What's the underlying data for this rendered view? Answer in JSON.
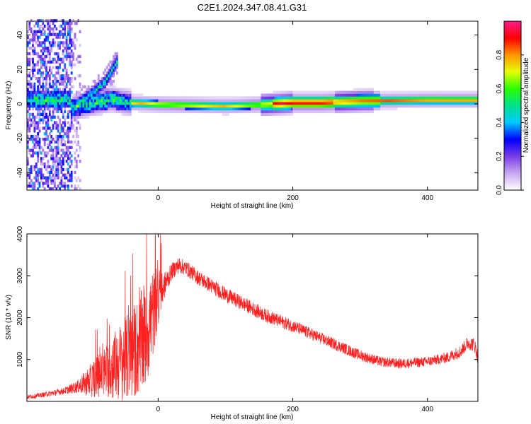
{
  "title": "C2E1.2024.347.08.41.G31",
  "chart_data": [
    {
      "type": "heatmap",
      "xlabel": "Height of straight line (km)",
      "ylabel": "Frequency (Hz)",
      "xlim": [
        -195,
        475
      ],
      "ylim": [
        -50,
        48
      ],
      "x_ticks": [
        0,
        200,
        400
      ],
      "y_ticks": [
        -40,
        -20,
        0,
        20,
        40
      ],
      "colorbar": {
        "label": "Normalized spectral amplitude",
        "range": [
          0,
          1
        ],
        "ticks": [
          0.0,
          0.2,
          0.4,
          0.6,
          0.8
        ],
        "tick_labels": [
          "0.0",
          "0.2",
          "0.4",
          "0.6",
          "0.8"
        ],
        "colormap": [
          "#ffffff",
          "#c8a8f0",
          "#7a3ce6",
          "#0000ff",
          "#00c8ff",
          "#00e08c",
          "#28ff00",
          "#e6ff00",
          "#ff9600",
          "#ff0000",
          "#ff1e8c"
        ]
      },
      "features": {
        "noise_region_x": [
          -195,
          -130
        ],
        "main_ridge": [
          [
            -130,
            -3
          ],
          [
            -70,
            2
          ],
          [
            -45,
            0
          ],
          [
            0,
            -1
          ],
          [
            100,
            -2
          ],
          [
            160,
            -1
          ],
          [
            200,
            0
          ],
          [
            240,
            0
          ],
          [
            300,
            1
          ],
          [
            400,
            1.5
          ],
          [
            475,
            1.5
          ]
        ],
        "rising_arm": [
          [
            -125,
            -2
          ],
          [
            -100,
            5
          ],
          [
            -80,
            12
          ],
          [
            -68,
            20
          ],
          [
            -62,
            24
          ]
        ]
      }
    },
    {
      "type": "line",
      "xlabel": "Height of straight line (km)",
      "ylabel": "SNR (10 * v/v)",
      "xlim": [
        -195,
        475
      ],
      "ylim": [
        0,
        4000
      ],
      "x_ticks": [
        0,
        200,
        400
      ],
      "y_ticks": [
        1000,
        2000,
        3000,
        4000
      ],
      "color": "#ff2020",
      "series": [
        {
          "envelope_x": [
            -195,
            -170,
            -140,
            -120,
            -100,
            -80,
            -60,
            -40,
            -20,
            -10,
            0,
            10,
            20,
            30,
            40,
            60,
            80,
            100,
            130,
            160,
            200,
            250,
            300,
            330,
            360,
            400,
            430,
            450,
            460,
            470,
            475
          ],
          "envelope_y": [
            100,
            160,
            250,
            350,
            500,
            700,
            900,
            1100,
            1500,
            2000,
            2400,
            2800,
            3100,
            3250,
            3200,
            2950,
            2750,
            2550,
            2300,
            2050,
            1800,
            1450,
            1100,
            950,
            900,
            950,
            1050,
            1200,
            1400,
            1350,
            1050
          ],
          "spike_amplitude": [
            50,
            60,
            80,
            150,
            400,
            600,
            900,
            1100,
            1300,
            1200,
            600,
            300,
            200,
            200,
            180,
            180,
            180,
            180,
            170,
            160,
            150,
            140,
            130,
            120,
            120,
            120,
            130,
            150,
            160,
            170,
            170
          ]
        }
      ]
    }
  ]
}
